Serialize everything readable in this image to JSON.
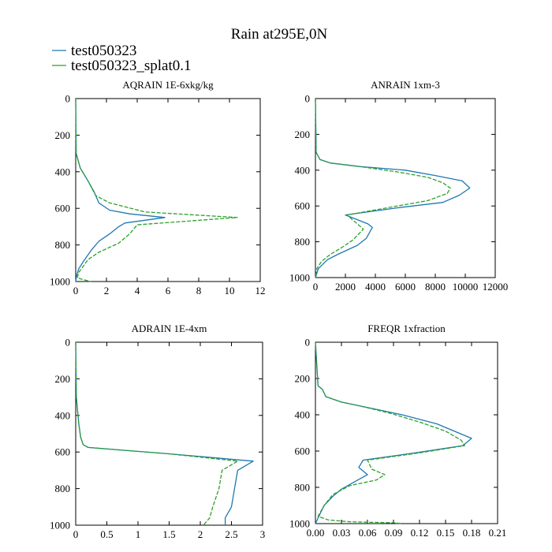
{
  "figure": {
    "title": "Rain at295E,0N",
    "legend": [
      {
        "label": "test050323",
        "color": "#1f77b4",
        "dash": "solid"
      },
      {
        "label": "test050323_splat0.1",
        "color": "#2ca02c",
        "dash": "dashed"
      }
    ]
  },
  "chart_data": [
    {
      "type": "line",
      "title": "AQRAIN  1E-6xkg/kg",
      "xlim": [
        0,
        12
      ],
      "xticks": [
        0,
        2,
        4,
        6,
        8,
        10,
        12
      ],
      "ylim": [
        1000,
        0
      ],
      "yticks": [
        0,
        200,
        400,
        600,
        800,
        1000
      ],
      "grid": false,
      "series": [
        {
          "name": "test050323",
          "points": [
            [
              0,
              0
            ],
            [
              0.03,
              300
            ],
            [
              0.3,
              380
            ],
            [
              0.8,
              450
            ],
            [
              1.2,
              510
            ],
            [
              1.5,
              570
            ],
            [
              2.2,
              610
            ],
            [
              3.5,
              630
            ],
            [
              5.8,
              650
            ],
            [
              3.2,
              680
            ],
            [
              2.8,
              700
            ],
            [
              2.2,
              740
            ],
            [
              1.5,
              780
            ],
            [
              1.0,
              830
            ],
            [
              0.5,
              890
            ],
            [
              0.2,
              930
            ],
            [
              0.05,
              970
            ],
            [
              0,
              1000
            ]
          ]
        },
        {
          "name": "test050323_splat0.1",
          "points": [
            [
              0,
              0
            ],
            [
              0.03,
              300
            ],
            [
              0.3,
              380
            ],
            [
              0.8,
              450
            ],
            [
              1.3,
              530
            ],
            [
              2.2,
              570
            ],
            [
              4.5,
              620
            ],
            [
              10.5,
              650
            ],
            [
              4.0,
              690
            ],
            [
              3.5,
              740
            ],
            [
              2.8,
              790
            ],
            [
              1.5,
              840
            ],
            [
              0.8,
              880
            ],
            [
              0.2,
              950
            ],
            [
              0.1,
              980
            ],
            [
              0.5,
              990
            ],
            [
              1.0,
              1000
            ]
          ]
        }
      ]
    },
    {
      "type": "line",
      "title": "ANRAIN  1xm-3",
      "xlim": [
        0,
        12000
      ],
      "xticks": [
        0,
        2000,
        4000,
        6000,
        8000,
        10000,
        12000
      ],
      "ylim": [
        1000,
        0
      ],
      "yticks": [
        0,
        200,
        400,
        600,
        800,
        1000
      ],
      "grid": false,
      "series": [
        {
          "name": "test050323",
          "points": [
            [
              0,
              0
            ],
            [
              50,
              300
            ],
            [
              300,
              340
            ],
            [
              1000,
              360
            ],
            [
              3000,
              380
            ],
            [
              6000,
              400
            ],
            [
              8000,
              430
            ],
            [
              9800,
              460
            ],
            [
              10300,
              500
            ],
            [
              9600,
              540
            ],
            [
              8500,
              580
            ],
            [
              5500,
              610
            ],
            [
              2000,
              650
            ],
            [
              3500,
              700
            ],
            [
              3800,
              720
            ],
            [
              3400,
              780
            ],
            [
              2800,
              820
            ],
            [
              1500,
              870
            ],
            [
              800,
              900
            ],
            [
              200,
              950
            ],
            [
              0,
              1000
            ]
          ]
        },
        {
          "name": "test050323_splat0.1",
          "points": [
            [
              0,
              0
            ],
            [
              50,
              300
            ],
            [
              300,
              340
            ],
            [
              1000,
              360
            ],
            [
              3000,
              380
            ],
            [
              5500,
              410
            ],
            [
              7500,
              440
            ],
            [
              8500,
              470
            ],
            [
              9000,
              500
            ],
            [
              8800,
              530
            ],
            [
              7500,
              570
            ],
            [
              4800,
              610
            ],
            [
              2100,
              650
            ],
            [
              2800,
              700
            ],
            [
              3200,
              730
            ],
            [
              2500,
              790
            ],
            [
              1800,
              830
            ],
            [
              1000,
              870
            ],
            [
              400,
              910
            ],
            [
              100,
              950
            ],
            [
              0,
              1000
            ]
          ]
        }
      ]
    },
    {
      "type": "line",
      "title": "ADRAIN  1E-4xm",
      "xlim": [
        0,
        3.0
      ],
      "xticks": [
        0.0,
        0.5,
        1.0,
        1.5,
        2.0,
        2.5,
        3.0
      ],
      "ylim": [
        1000,
        0
      ],
      "yticks": [
        0,
        200,
        400,
        600,
        800,
        1000
      ],
      "grid": false,
      "series": [
        {
          "name": "test050323",
          "points": [
            [
              0,
              0
            ],
            [
              0.01,
              300
            ],
            [
              0.05,
              450
            ],
            [
              0.08,
              520
            ],
            [
              0.12,
              560
            ],
            [
              0.2,
              575
            ],
            [
              1.5,
              610
            ],
            [
              2.85,
              650
            ],
            [
              2.6,
              700
            ],
            [
              2.55,
              800
            ],
            [
              2.5,
              900
            ],
            [
              2.4,
              960
            ],
            [
              2.4,
              1000
            ]
          ]
        },
        {
          "name": "test050323_splat0.1",
          "points": [
            [
              0,
              0
            ],
            [
              0.01,
              300
            ],
            [
              0.05,
              450
            ],
            [
              0.08,
              520
            ],
            [
              0.12,
              560
            ],
            [
              0.2,
              575
            ],
            [
              1.5,
              610
            ],
            [
              2.6,
              650
            ],
            [
              2.35,
              700
            ],
            [
              2.3,
              800
            ],
            [
              2.2,
              900
            ],
            [
              2.15,
              960
            ],
            [
              2.05,
              1000
            ]
          ]
        }
      ]
    },
    {
      "type": "line",
      "title": "FREQR  1xfraction",
      "xlim": [
        0,
        0.21
      ],
      "xticks": [
        "0.00",
        "0.03",
        "0.06",
        "0.09",
        "0.12",
        "0.15",
        "0.18",
        "0.21"
      ],
      "ylim": [
        1000,
        0
      ],
      "yticks": [
        0,
        200,
        400,
        600,
        800,
        1000
      ],
      "grid": false,
      "series": [
        {
          "name": "test050323",
          "points": [
            [
              0,
              0
            ],
            [
              0.003,
              240
            ],
            [
              0.008,
              260
            ],
            [
              0.012,
              300
            ],
            [
              0.03,
              330
            ],
            [
              0.06,
              360
            ],
            [
              0.1,
              400
            ],
            [
              0.14,
              450
            ],
            [
              0.165,
              500
            ],
            [
              0.18,
              530
            ],
            [
              0.17,
              570
            ],
            [
              0.115,
              610
            ],
            [
              0.055,
              650
            ],
            [
              0.05,
              690
            ],
            [
              0.06,
              730
            ],
            [
              0.045,
              770
            ],
            [
              0.03,
              810
            ],
            [
              0.02,
              850
            ],
            [
              0.01,
              900
            ],
            [
              0.005,
              950
            ],
            [
              0,
              1000
            ]
          ]
        },
        {
          "name": "test050323_splat0.1",
          "points": [
            [
              0,
              0
            ],
            [
              0.003,
              240
            ],
            [
              0.008,
              260
            ],
            [
              0.012,
              300
            ],
            [
              0.03,
              330
            ],
            [
              0.05,
              350
            ],
            [
              0.085,
              390
            ],
            [
              0.12,
              440
            ],
            [
              0.15,
              490
            ],
            [
              0.168,
              540
            ],
            [
              0.172,
              570
            ],
            [
              0.12,
              610
            ],
            [
              0.06,
              650
            ],
            [
              0.065,
              700
            ],
            [
              0.08,
              730
            ],
            [
              0.07,
              760
            ],
            [
              0.04,
              790
            ],
            [
              0.02,
              840
            ],
            [
              0.01,
              900
            ],
            [
              0.003,
              960
            ],
            [
              0.015,
              980
            ],
            [
              0.04,
              990
            ],
            [
              0.09,
              995
            ],
            [
              0.1,
              1000
            ]
          ]
        }
      ]
    }
  ]
}
